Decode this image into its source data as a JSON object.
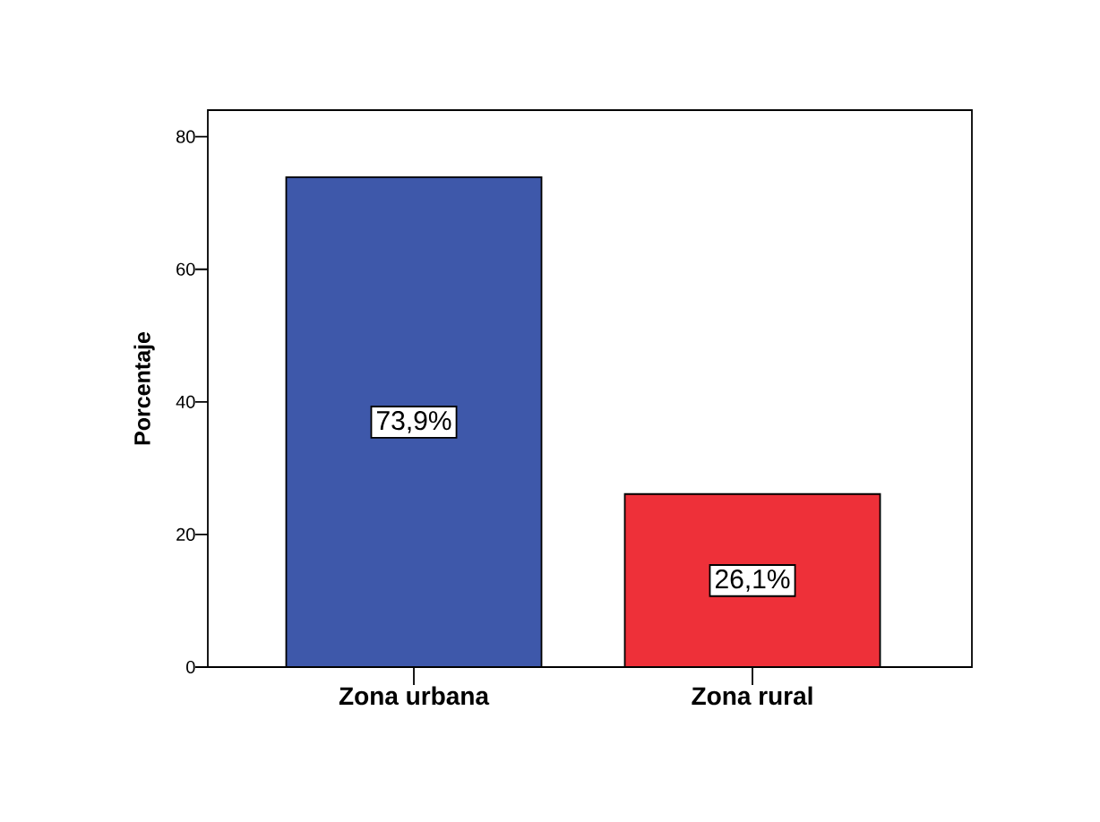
{
  "chart_data": {
    "type": "bar",
    "ylabel": "Porcentaje",
    "categories": [
      "Zona urbana",
      "Zona rural"
    ],
    "values": [
      73.9,
      26.1
    ],
    "colors": [
      "#3e58aa",
      "#ee3039"
    ],
    "value_labels": [
      "73,9%",
      "26,1%"
    ],
    "ylim": [
      0,
      84
    ],
    "yticks": [
      0,
      20,
      40,
      60,
      80
    ]
  }
}
